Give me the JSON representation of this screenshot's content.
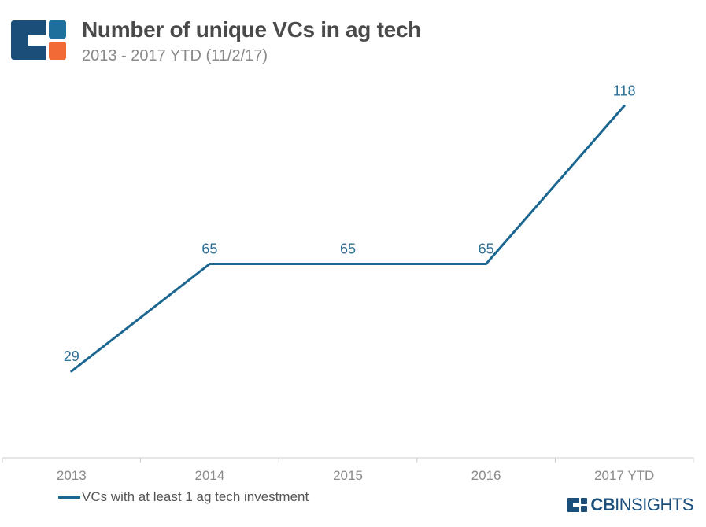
{
  "header": {
    "title": "Number of unique VCs in ag tech",
    "subtitle": "2013 - 2017 YTD (11/2/17)"
  },
  "brand": {
    "cb": "CB",
    "insights": "INSIGHTS",
    "colors": {
      "navy": "#1b4f7a",
      "blue": "#1f6f9c",
      "orange": "#f26a36"
    }
  },
  "chart_data": {
    "type": "line",
    "categories": [
      "2013",
      "2014",
      "2015",
      "2016",
      "2017 YTD"
    ],
    "series": [
      {
        "name": "VCs with at least 1 ag tech investment",
        "values": [
          29,
          65,
          65,
          65,
          118
        ],
        "color": "#1c6791"
      }
    ],
    "data_labels": [
      "29",
      "65",
      "65",
      "65",
      "118"
    ],
    "ylim": [
      0,
      135
    ],
    "grid": false,
    "legend_position": "bottom-left"
  }
}
